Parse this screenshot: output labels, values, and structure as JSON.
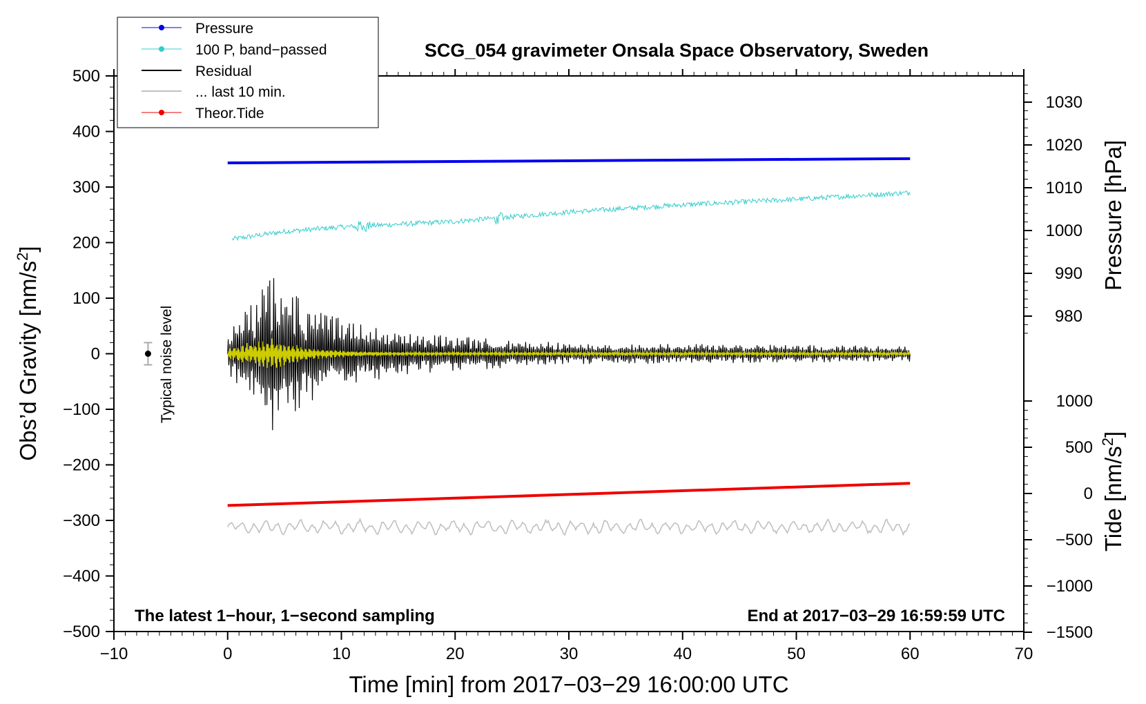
{
  "chart_data": {
    "type": "line",
    "title": "SCG_054 gravimeter Onsala Space Observatory, Sweden",
    "xlabel": "Time [min] from 2017−03−29 16:00:00 UTC",
    "xlim": [
      -10,
      70
    ],
    "x_ticks": [
      "−10",
      "0",
      "10",
      "20",
      "30",
      "40",
      "50",
      "60",
      "70"
    ],
    "y_left": {
      "label_main": "Obs’d Gravity [nm/s",
      "label_sup": "2",
      "label_end": "]",
      "lim": [
        -500,
        500
      ],
      "ticks": [
        "500",
        "400",
        "300",
        "200",
        "100",
        "0",
        "−100",
        "−200",
        "−300",
        "−400",
        "−500"
      ]
    },
    "y_right_pressure": {
      "label": "Pressure [hPa]",
      "ticks": [
        "1030",
        "1020",
        "1010",
        "1000",
        "990",
        "980"
      ],
      "tick_values": [
        1030,
        1020,
        1010,
        1000,
        990,
        980
      ]
    },
    "y_right_tide": {
      "label_main": "Tide [nm/s",
      "label_sup": "2",
      "label_end": "]",
      "ticks": [
        "1000",
        "500",
        "0",
        "−500",
        "−1000",
        "−1500"
      ],
      "tick_values": [
        1000,
        500,
        0,
        -500,
        -1000,
        -1500
      ]
    },
    "legend": {
      "position": "top-left",
      "entries": [
        "Pressure",
        "100 P, band−passed",
        "Residual",
        "... last 10 min.",
        "Theor.Tide"
      ]
    },
    "series": [
      {
        "name": "Pressure",
        "color": "#0000ee",
        "axis": "pressure_hPa",
        "x": [
          0,
          60
        ],
        "values": [
          1015.8,
          1016.8
        ]
      },
      {
        "name": "100 P, band−passed",
        "color": "#33cccc",
        "axis": "gravity_nm_s2",
        "x": [
          0,
          5,
          10,
          20,
          30,
          40,
          50,
          60
        ],
        "values": [
          205,
          220,
          228,
          238,
          255,
          268,
          278,
          290
        ]
      },
      {
        "name": "Residual",
        "color": "#000000",
        "axis": "gravity_nm_s2",
        "description_envelope": [
          [
            0,
            40
          ],
          [
            4,
            150
          ],
          [
            8,
            80
          ],
          [
            15,
            40
          ],
          [
            30,
            20
          ],
          [
            60,
            15
          ]
        ]
      },
      {
        "name": "... last 10 min.",
        "color": "#c0c0c0",
        "axis": "gravity_nm_s2",
        "x": [
          0,
          60
        ],
        "values": [
          -312,
          -312
        ]
      },
      {
        "name": "Theor.Tide",
        "color": "#ee0000",
        "axis": "tide_nm_s2",
        "x": [
          0,
          60
        ],
        "values": [
          -130,
          110
        ]
      }
    ],
    "annotations": {
      "noise_label": "Typical noise level",
      "noise_point": {
        "x": -7,
        "y": 0,
        "err": 20
      },
      "bottom_left": "The latest 1−hour, 1−second sampling",
      "bottom_right": "End at 2017−03−29 16:59:59 UTC"
    }
  },
  "colors": {
    "pressure": "#0000ee",
    "bandpassed": "#33cccc",
    "residual": "#000000",
    "residual_overlay": "#cccc00",
    "last10": "#c0c0c0",
    "tide": "#ee0000"
  }
}
